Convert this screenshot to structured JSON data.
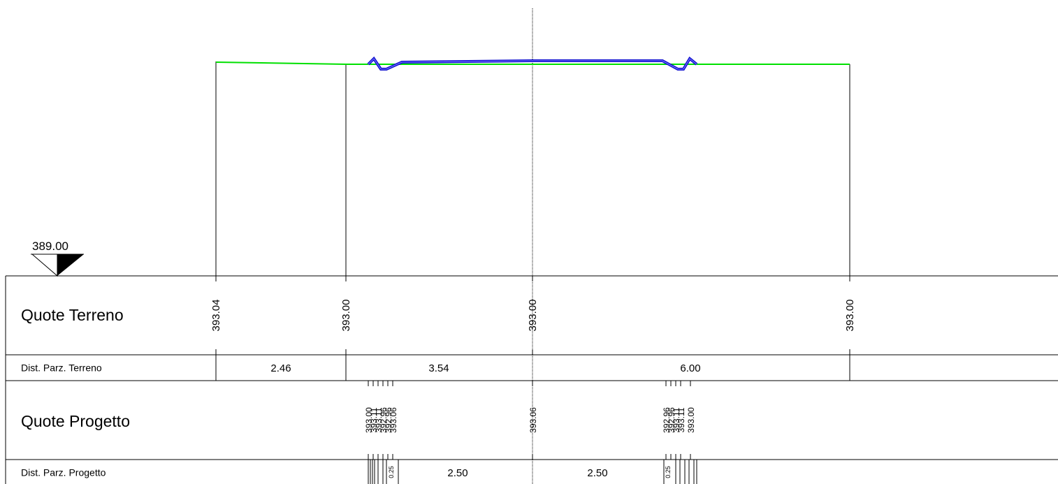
{
  "datum": "389.00",
  "rows": [
    {
      "title": "Quote Terreno",
      "values": [
        "393.04",
        "393.00",
        "393.00",
        "393.00"
      ]
    },
    {
      "title": "Dist. Parz. Terreno",
      "values": [
        "2.46",
        "3.54",
        "6.00"
      ]
    },
    {
      "title": "Quote Progetto",
      "values": [
        "393.00",
        "393.11",
        "393.11",
        "392.96",
        "392.96",
        "393.06",
        "393.06",
        "392.96",
        "392.96",
        "393.11",
        "393.11",
        "393.00"
      ]
    },
    {
      "title": "Dist. Parz. Progetto",
      "values": [
        "0.25",
        "2.50",
        "2.50",
        "0.25"
      ]
    }
  ]
}
